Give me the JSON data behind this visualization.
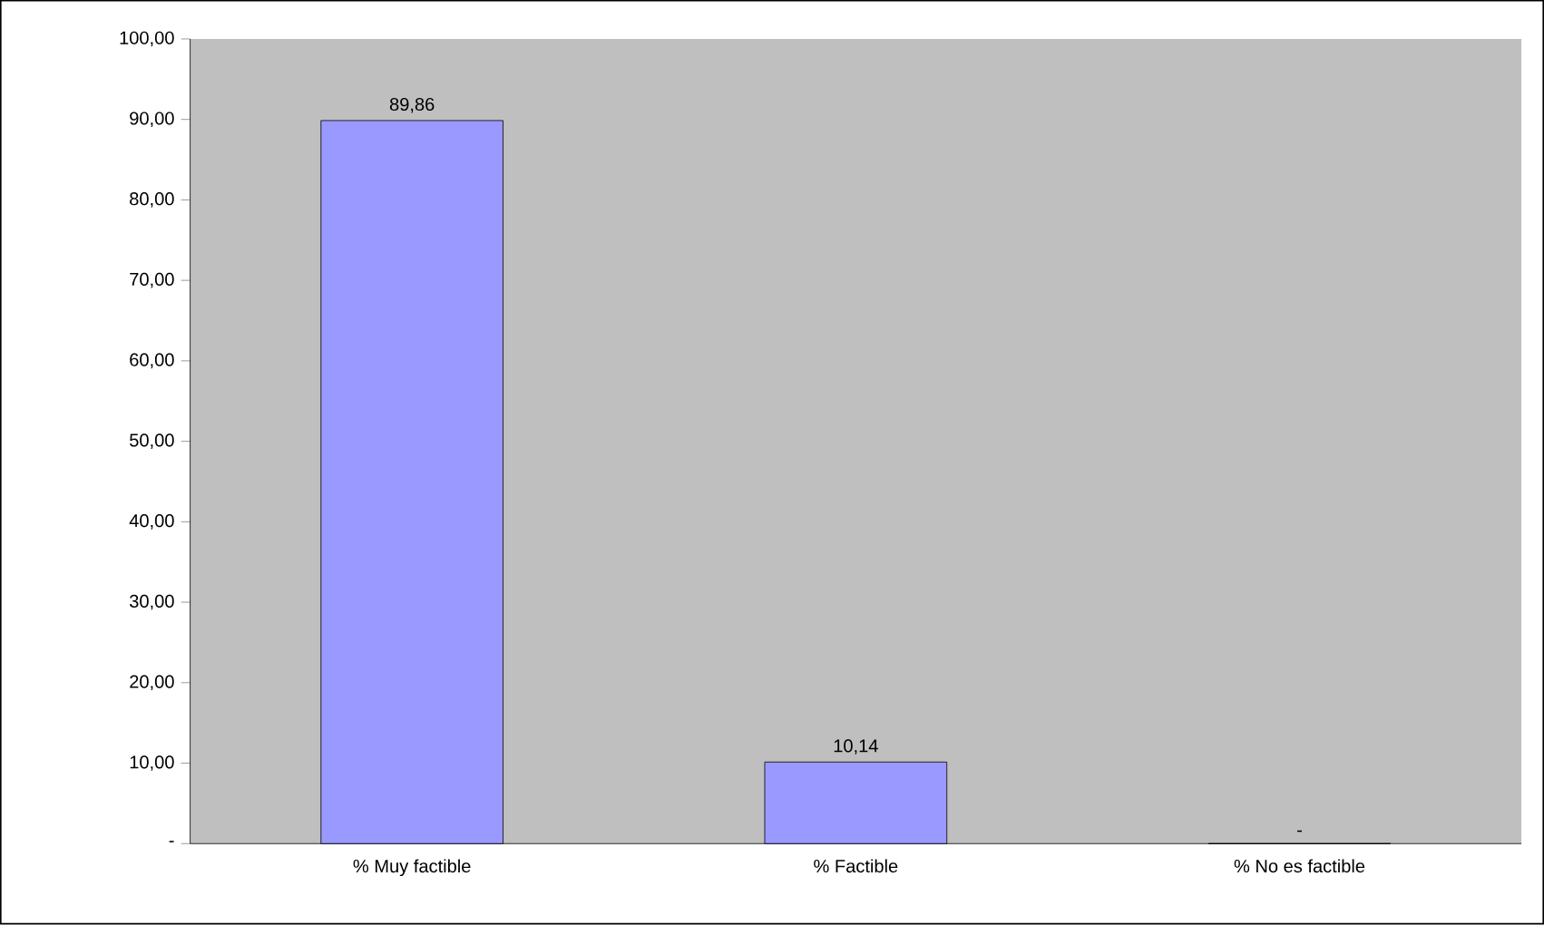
{
  "chart_data": {
    "type": "bar",
    "categories": [
      "% Muy factible",
      "% Factible",
      "% No es factible"
    ],
    "values": [
      89.86,
      10.14,
      0
    ],
    "value_labels": [
      "89,86",
      "10,14",
      "-"
    ],
    "color": "#9999ff",
    "ylim": [
      0,
      100
    ],
    "yticks": [
      {
        "value": 0,
        "label": "-"
      },
      {
        "value": 10,
        "label": "10,00"
      },
      {
        "value": 20,
        "label": "20,00"
      },
      {
        "value": 30,
        "label": "30,00"
      },
      {
        "value": 40,
        "label": "40,00"
      },
      {
        "value": 50,
        "label": "50,00"
      },
      {
        "value": 60,
        "label": "60,00"
      },
      {
        "value": 70,
        "label": "70,00"
      },
      {
        "value": 80,
        "label": "80,00"
      },
      {
        "value": 90,
        "label": "90,00"
      },
      {
        "value": 100,
        "label": "100,00"
      }
    ],
    "grid": false
  }
}
